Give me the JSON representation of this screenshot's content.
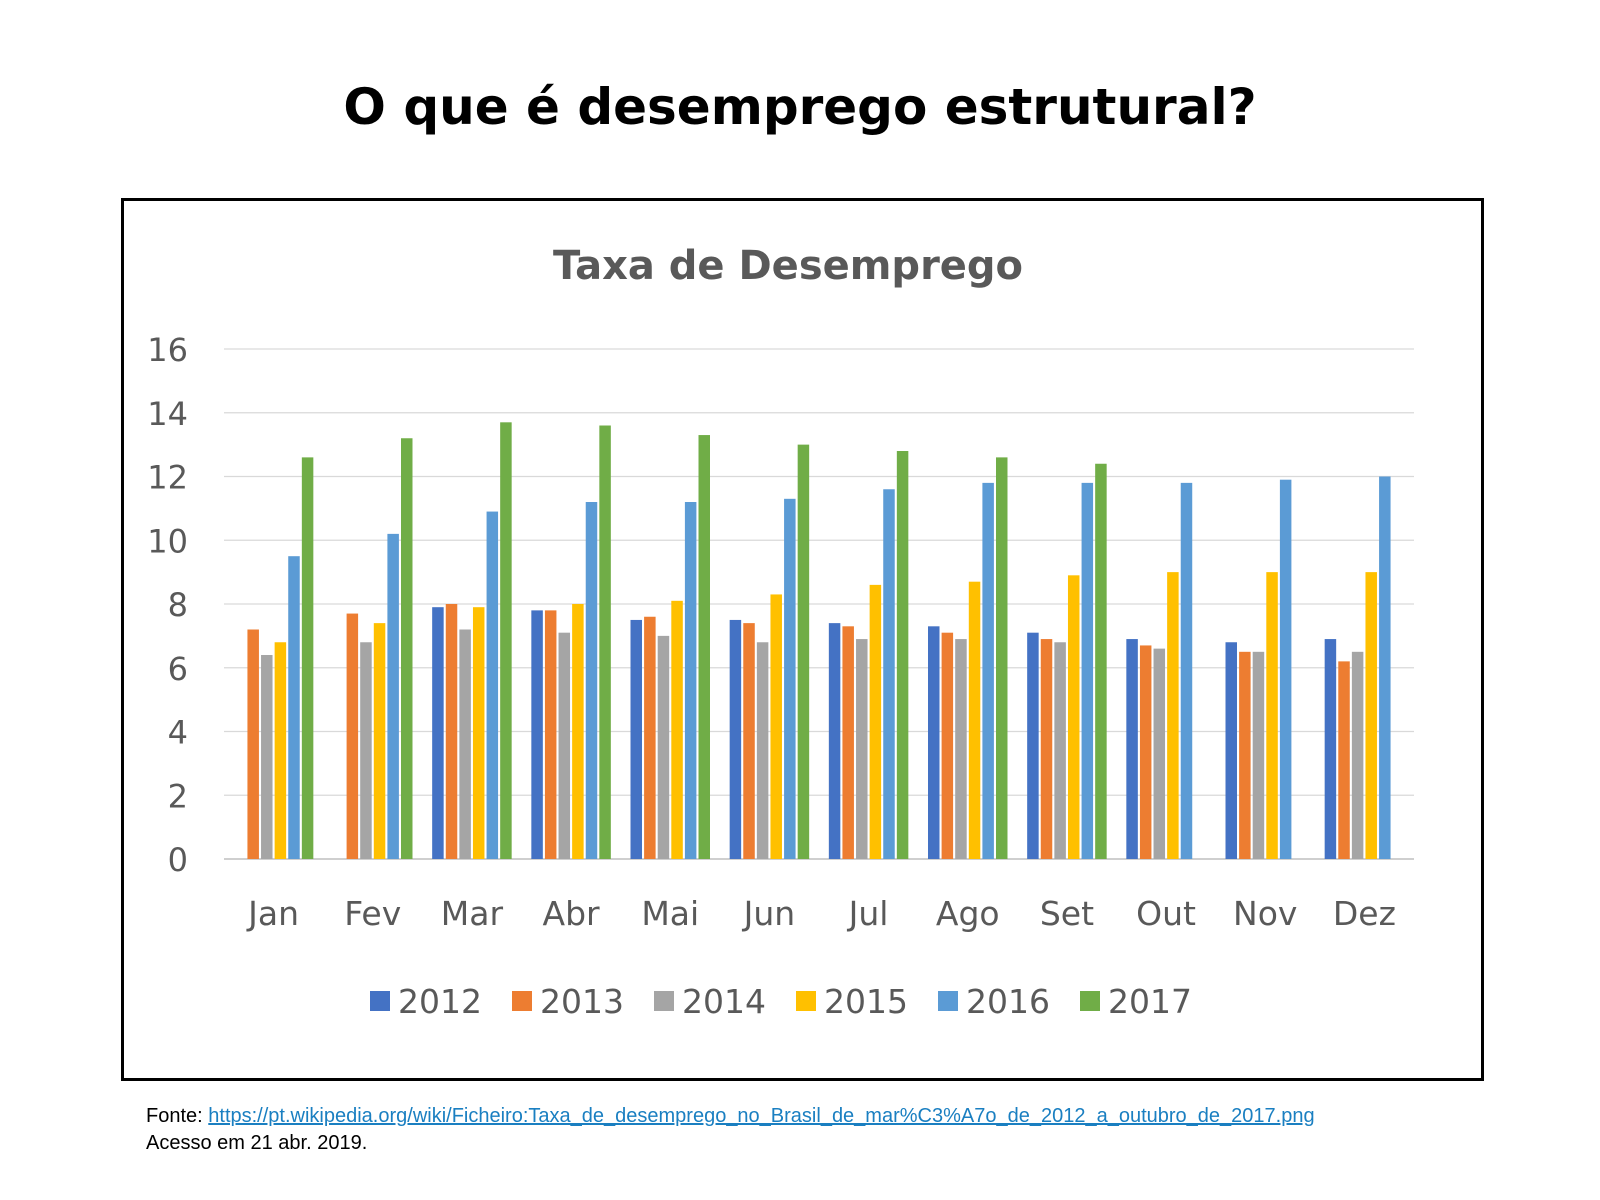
{
  "page": {
    "heading": "O que é desemprego estrutural?",
    "source_label": "Fonte:",
    "source_url": "https://pt.wikipedia.org/wiki/Ficheiro:Taxa_de_desemprego_no_Brasil_de_mar%C3%A7o_de_2012_a_outubro_de_2017.png",
    "access_note": "Acesso em 21 abr. 2019."
  },
  "chart_data": {
    "type": "bar",
    "title": "Taxa de Desemprego",
    "xlabel": "",
    "ylabel": "",
    "ylim": [
      0,
      16
    ],
    "yticks": [
      0,
      2,
      4,
      6,
      8,
      10,
      12,
      14,
      16
    ],
    "grid": true,
    "legend_position": "bottom",
    "categories": [
      "Jan",
      "Fev",
      "Mar",
      "Abr",
      "Mai",
      "Jun",
      "Jul",
      "Ago",
      "Set",
      "Out",
      "Nov",
      "Dez"
    ],
    "series": [
      {
        "name": "2012",
        "color": "#4472c4",
        "values": [
          null,
          null,
          7.9,
          7.8,
          7.5,
          7.5,
          7.4,
          7.3,
          7.1,
          6.9,
          6.8,
          6.9
        ]
      },
      {
        "name": "2013",
        "color": "#ed7d31",
        "values": [
          7.2,
          7.7,
          8.0,
          7.8,
          7.6,
          7.4,
          7.3,
          7.1,
          6.9,
          6.7,
          6.5,
          6.2
        ]
      },
      {
        "name": "2014",
        "color": "#a5a5a5",
        "values": [
          6.4,
          6.8,
          7.2,
          7.1,
          7.0,
          6.8,
          6.9,
          6.9,
          6.8,
          6.6,
          6.5,
          6.5
        ]
      },
      {
        "name": "2015",
        "color": "#ffc000",
        "values": [
          6.8,
          7.4,
          7.9,
          8.0,
          8.1,
          8.3,
          8.6,
          8.7,
          8.9,
          9.0,
          9.0,
          9.0
        ]
      },
      {
        "name": "2016",
        "color": "#5b9bd5",
        "values": [
          9.5,
          10.2,
          10.9,
          11.2,
          11.2,
          11.3,
          11.6,
          11.8,
          11.8,
          11.8,
          11.9,
          12.0
        ]
      },
      {
        "name": "2017",
        "color": "#70ad47",
        "values": [
          12.6,
          13.2,
          13.7,
          13.6,
          13.3,
          13.0,
          12.8,
          12.6,
          12.4,
          null,
          null,
          null
        ]
      }
    ]
  }
}
